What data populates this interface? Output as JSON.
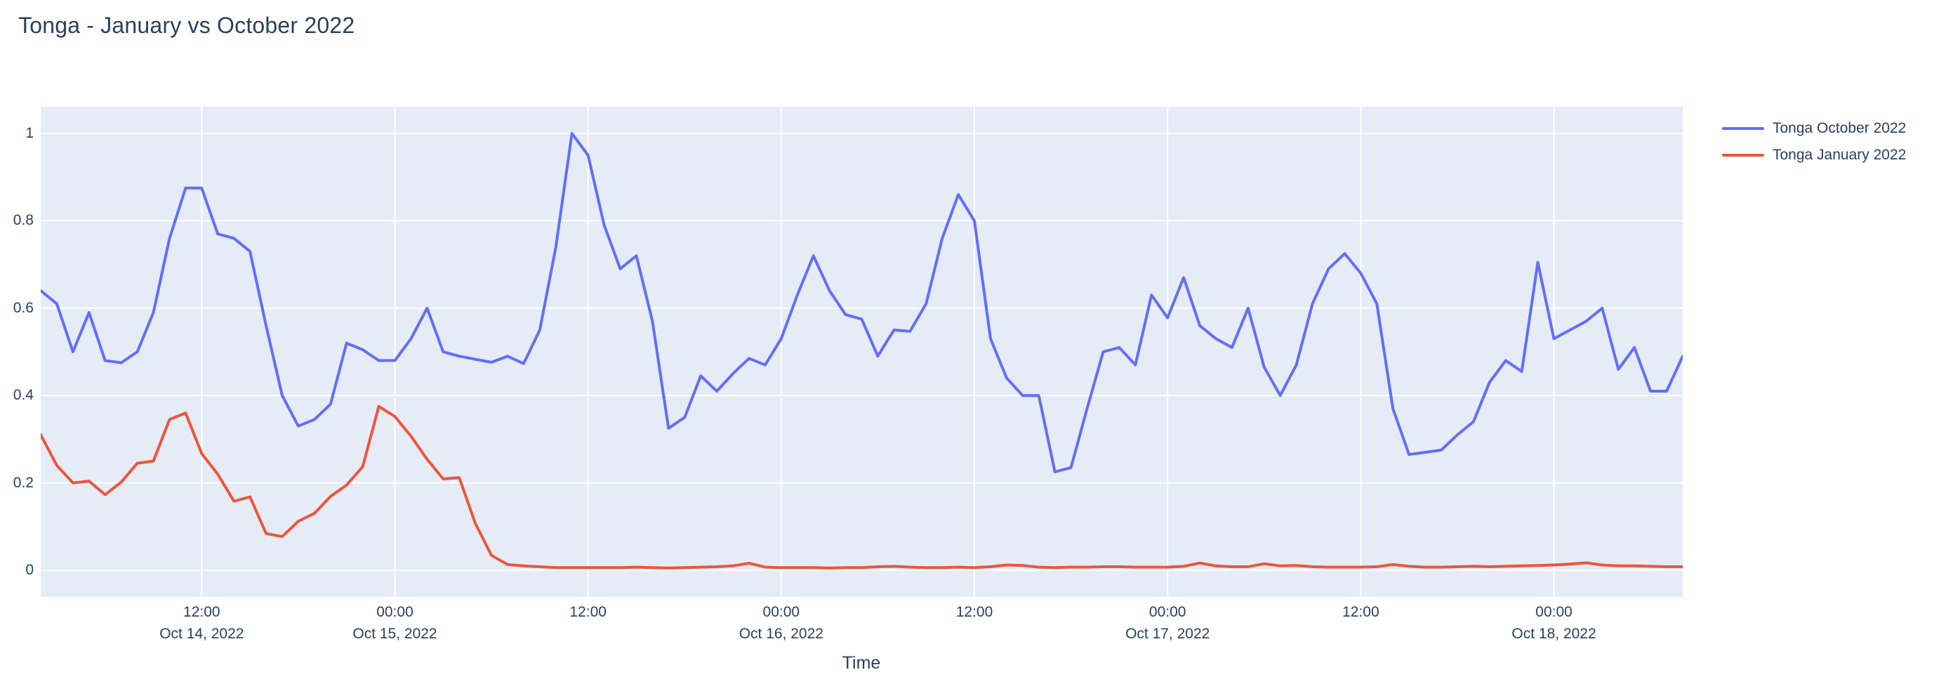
{
  "title": "Tonga - January vs October 2022",
  "colors": {
    "text": "#2a3f5f",
    "plot_background": "#e5ecf6",
    "gridline": "#ffffff",
    "page_background": "#ffffff",
    "series_october": "#636efa",
    "series_january": "#ef553b"
  },
  "chart_data": {
    "type": "line",
    "title": "Tonga - January vs October 2022",
    "xlabel": "Time",
    "ylabel": "",
    "x_start": "Oct 14, 2022 02:00",
    "x_end": "Oct 18, 2022 08:00",
    "x_step_hours": 1,
    "n_points": 103,
    "ylim_axis": [
      -0.0611,
      1.0611
    ],
    "grid": true,
    "legend_position": "right-top-outside",
    "yticks": {
      "values": [
        0,
        0.2,
        0.4,
        0.6,
        0.8,
        1
      ],
      "labels": [
        "0",
        "0.2",
        "0.4",
        "0.6",
        "0.8",
        "1"
      ]
    },
    "xticks": [
      {
        "hour_index": 10,
        "time": "12:00",
        "date": "Oct 14, 2022"
      },
      {
        "hour_index": 22,
        "time": "00:00",
        "date": "Oct 15, 2022"
      },
      {
        "hour_index": 34,
        "time": "12:00",
        "date": ""
      },
      {
        "hour_index": 46,
        "time": "00:00",
        "date": "Oct 16, 2022"
      },
      {
        "hour_index": 58,
        "time": "12:00",
        "date": ""
      },
      {
        "hour_index": 70,
        "time": "00:00",
        "date": "Oct 17, 2022"
      },
      {
        "hour_index": 82,
        "time": "12:00",
        "date": ""
      },
      {
        "hour_index": 94,
        "time": "00:00",
        "date": "Oct 18, 2022"
      }
    ],
    "series": [
      {
        "name": "Tonga October 2022",
        "color": "#636efa",
        "values": [
          0.64,
          0.61,
          0.5,
          0.59,
          0.48,
          0.475,
          0.5,
          0.59,
          0.76,
          0.875,
          0.875,
          0.77,
          0.76,
          0.73,
          0.56,
          0.4,
          0.33,
          0.345,
          0.38,
          0.52,
          0.505,
          0.48,
          0.48,
          0.53,
          0.6,
          0.5,
          0.49,
          0.483,
          0.476,
          0.49,
          0.473,
          0.55,
          0.74,
          1.0,
          0.95,
          0.79,
          0.69,
          0.72,
          0.57,
          0.325,
          0.35,
          0.445,
          0.41,
          0.45,
          0.485,
          0.47,
          0.53,
          0.63,
          0.72,
          0.64,
          0.585,
          0.575,
          0.49,
          0.55,
          0.547,
          0.61,
          0.76,
          0.86,
          0.8,
          0.53,
          0.44,
          0.4,
          0.4,
          0.225,
          0.235,
          0.37,
          0.5,
          0.51,
          0.47,
          0.63,
          0.578,
          0.67,
          0.56,
          0.53,
          0.51,
          0.6,
          0.465,
          0.4,
          0.47,
          0.61,
          0.69,
          0.725,
          0.68,
          0.61,
          0.37,
          0.265,
          0.27,
          0.275,
          0.31,
          0.34,
          0.43,
          0.48,
          0.455,
          0.705,
          0.53,
          0.55,
          0.57,
          0.6,
          0.46,
          0.51,
          0.41,
          0.41,
          0.49
        ]
      },
      {
        "name": "Tonga January 2022",
        "color": "#ef553b",
        "values": [
          0.31,
          0.24,
          0.2,
          0.204,
          0.173,
          0.202,
          0.245,
          0.25,
          0.345,
          0.36,
          0.267,
          0.22,
          0.158,
          0.168,
          0.084,
          0.077,
          0.112,
          0.13,
          0.169,
          0.195,
          0.237,
          0.375,
          0.352,
          0.307,
          0.254,
          0.209,
          0.212,
          0.107,
          0.034,
          0.013,
          0.01,
          0.008,
          0.006,
          0.006,
          0.006,
          0.006,
          0.006,
          0.007,
          0.006,
          0.005,
          0.006,
          0.007,
          0.008,
          0.01,
          0.016,
          0.007,
          0.006,
          0.006,
          0.006,
          0.005,
          0.006,
          0.006,
          0.008,
          0.009,
          0.007,
          0.006,
          0.006,
          0.007,
          0.006,
          0.008,
          0.012,
          0.011,
          0.007,
          0.006,
          0.007,
          0.007,
          0.008,
          0.008,
          0.007,
          0.007,
          0.007,
          0.009,
          0.0165,
          0.01,
          0.008,
          0.008,
          0.015,
          0.01,
          0.011,
          0.008,
          0.007,
          0.007,
          0.007,
          0.008,
          0.013,
          0.009,
          0.007,
          0.007,
          0.008,
          0.009,
          0.008,
          0.009,
          0.01,
          0.011,
          0.012,
          0.014,
          0.017,
          0.012,
          0.01,
          0.01,
          0.009,
          0.008,
          0.008
        ]
      }
    ]
  },
  "legend": {
    "items": [
      "Tonga October 2022",
      "Tonga January 2022"
    ]
  },
  "x_axis_title": "Time"
}
